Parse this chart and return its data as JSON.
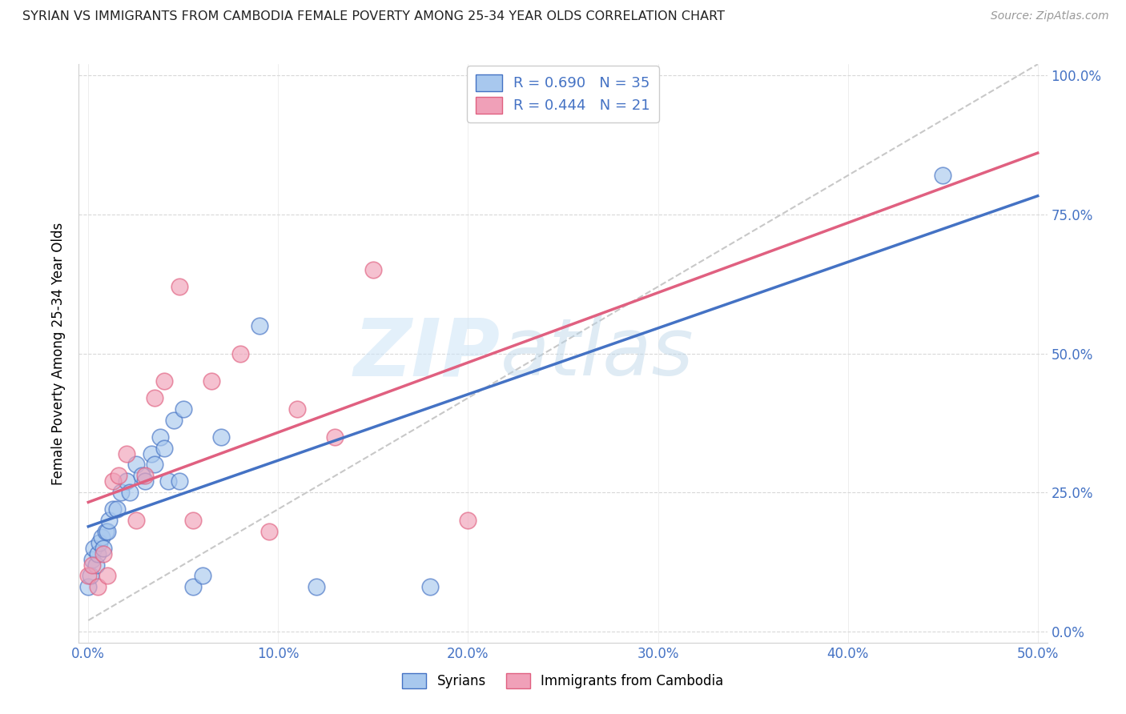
{
  "title": "SYRIAN VS IMMIGRANTS FROM CAMBODIA FEMALE POVERTY AMONG 25-34 YEAR OLDS CORRELATION CHART",
  "source": "Source: ZipAtlas.com",
  "ylabel_label": "Female Poverty Among 25-34 Year Olds",
  "legend_label1": "Syrians",
  "legend_label2": "Immigrants from Cambodia",
  "R1": 0.69,
  "N1": 35,
  "R2": 0.444,
  "N2": 21,
  "color_blue": "#a8c8ee",
  "color_pink": "#f0a0b8",
  "color_blue_line": "#4472c4",
  "color_pink_line": "#e06080",
  "color_diag": "#c8c8c8",
  "watermark_zip": "ZIP",
  "watermark_atlas": "atlas",
  "syrians_x": [
    0.0,
    0.001,
    0.002,
    0.003,
    0.004,
    0.005,
    0.006,
    0.007,
    0.008,
    0.009,
    0.01,
    0.011,
    0.013,
    0.015,
    0.017,
    0.02,
    0.022,
    0.025,
    0.028,
    0.03,
    0.033,
    0.035,
    0.038,
    0.04,
    0.042,
    0.045,
    0.048,
    0.05,
    0.055,
    0.06,
    0.07,
    0.09,
    0.12,
    0.18,
    0.45
  ],
  "syrians_y": [
    0.08,
    0.1,
    0.13,
    0.15,
    0.12,
    0.14,
    0.16,
    0.17,
    0.15,
    0.18,
    0.18,
    0.2,
    0.22,
    0.22,
    0.25,
    0.27,
    0.25,
    0.3,
    0.28,
    0.27,
    0.32,
    0.3,
    0.35,
    0.33,
    0.27,
    0.38,
    0.27,
    0.4,
    0.08,
    0.1,
    0.35,
    0.55,
    0.08,
    0.08,
    0.82
  ],
  "cambodia_x": [
    0.0,
    0.002,
    0.005,
    0.008,
    0.01,
    0.013,
    0.016,
    0.02,
    0.025,
    0.03,
    0.035,
    0.04,
    0.048,
    0.055,
    0.065,
    0.08,
    0.095,
    0.11,
    0.13,
    0.15,
    0.2
  ],
  "cambodia_y": [
    0.1,
    0.12,
    0.08,
    0.14,
    0.1,
    0.27,
    0.28,
    0.32,
    0.2,
    0.28,
    0.42,
    0.45,
    0.62,
    0.2,
    0.45,
    0.5,
    0.18,
    0.4,
    0.35,
    0.65,
    0.2
  ],
  "xlim": [
    0.0,
    0.5
  ],
  "ylim": [
    0.0,
    1.0
  ],
  "xticks": [
    0.0,
    0.1,
    0.2,
    0.3,
    0.4,
    0.5
  ],
  "yticks": [
    0.0,
    0.25,
    0.5,
    0.75,
    1.0
  ],
  "xtick_labels": [
    "0.0%",
    "10.0%",
    "20.0%",
    "30.0%",
    "40.0%",
    "50.0%"
  ],
  "ytick_labels": [
    "0.0%",
    "25.0%",
    "50.0%",
    "75.0%",
    "100.0%"
  ]
}
